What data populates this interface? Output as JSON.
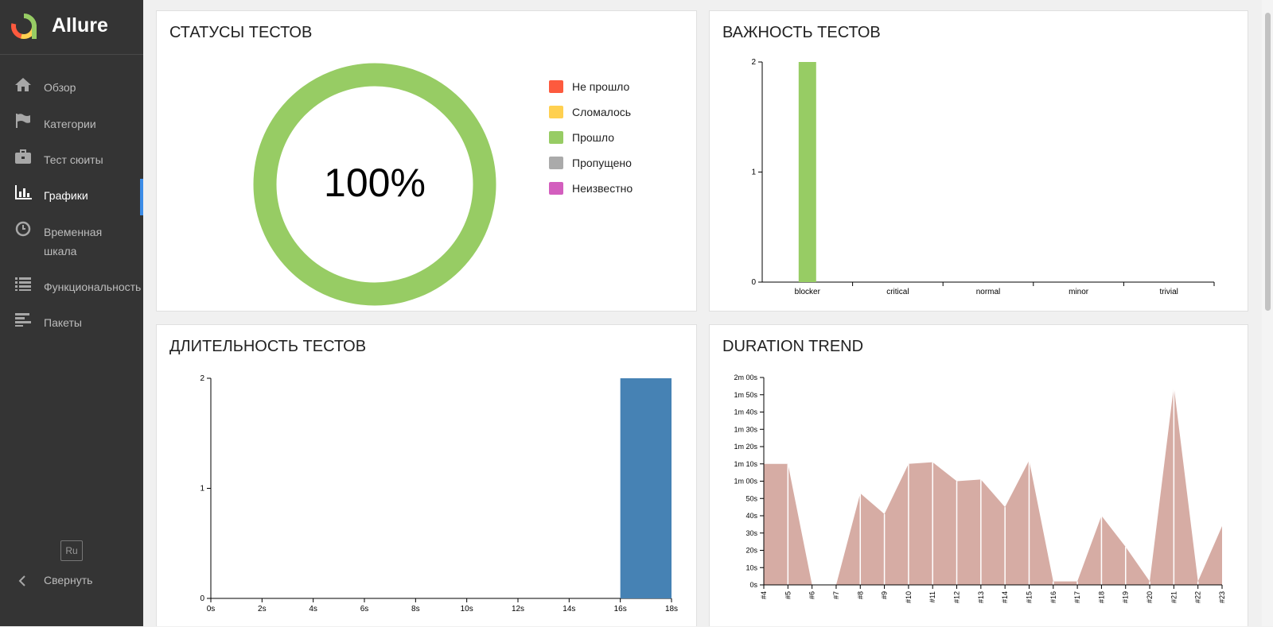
{
  "app": {
    "name": "Allure"
  },
  "sidebar": {
    "items": [
      {
        "label": "Обзор",
        "icon": "home-icon"
      },
      {
        "label": "Категории",
        "icon": "flag-icon"
      },
      {
        "label": "Тест сюиты",
        "icon": "briefcase-icon"
      },
      {
        "label": "Графики",
        "icon": "bar-chart-icon",
        "active": true
      },
      {
        "label": "Временная шкала",
        "icon": "clock-icon"
      },
      {
        "label": "Функциональность",
        "icon": "list-icon"
      },
      {
        "label": "Пакеты",
        "icon": "align-left-icon"
      }
    ],
    "language": "Ru",
    "collapse_label": "Свернуть"
  },
  "widgets": {
    "statuses": {
      "title": "СТАТУСЫ ТЕСТОВ",
      "center_text": "100%",
      "legend": [
        {
          "label": "Не прошло",
          "color": "#fd5a3e"
        },
        {
          "label": "Сломалось",
          "color": "#ffd050"
        },
        {
          "label": "Прошло",
          "color": "#97cc64"
        },
        {
          "label": "Пропущено",
          "color": "#aaaaaa"
        },
        {
          "label": "Неизвестно",
          "color": "#d35ebe"
        }
      ]
    },
    "severity": {
      "title": "ВАЖНОСТЬ ТЕСТОВ"
    },
    "duration": {
      "title": "ДЛИТЕЛЬНОСТЬ ТЕСТОВ"
    },
    "trend": {
      "title": "DURATION TREND"
    }
  },
  "chart_data": [
    {
      "type": "pie",
      "title": "СТАТУСЫ ТЕСТОВ",
      "categories": [
        "Не прошло",
        "Сломалось",
        "Прошло",
        "Пропущено",
        "Неизвестно"
      ],
      "values": [
        0,
        0,
        100,
        0,
        0
      ],
      "colors": [
        "#fd5a3e",
        "#ffd050",
        "#97cc64",
        "#aaaaaa",
        "#d35ebe"
      ],
      "center_label": "100%",
      "legend": "right"
    },
    {
      "type": "bar",
      "title": "ВАЖНОСТЬ ТЕСТОВ",
      "categories": [
        "blocker",
        "critical",
        "normal",
        "minor",
        "trivial"
      ],
      "values": [
        2,
        0,
        0,
        0,
        0
      ],
      "ylim": [
        0,
        2
      ],
      "yticks": [
        "0",
        "1",
        "2"
      ],
      "color": "#97cc64"
    },
    {
      "type": "bar",
      "title": "ДЛИТЕЛЬНОСТЬ ТЕСТОВ",
      "x_ticks": [
        "0s",
        "2s",
        "4s",
        "6s",
        "8s",
        "10s",
        "12s",
        "14s",
        "16s",
        "18s"
      ],
      "bins": [
        {
          "from": 16,
          "to": 18,
          "value": 2
        }
      ],
      "xlim": [
        0,
        18
      ],
      "ylim": [
        0,
        2
      ],
      "yticks": [
        "0",
        "1",
        "2"
      ],
      "color": "#4682b4"
    },
    {
      "type": "area",
      "title": "DURATION TREND",
      "categories": [
        "#4",
        "#5",
        "#6",
        "#7",
        "#8",
        "#9",
        "#10",
        "#11",
        "#12",
        "#13",
        "#14",
        "#15",
        "#16",
        "#17",
        "#18",
        "#19",
        "#20",
        "#21",
        "#22",
        "#23"
      ],
      "values": [
        70,
        70,
        0,
        0,
        53,
        41,
        70,
        71,
        60,
        61,
        45,
        72,
        2,
        2,
        40,
        22,
        2,
        115,
        2,
        34
      ],
      "ylim": [
        0,
        120
      ],
      "ytick_labels": [
        "0s",
        "10s",
        "20s",
        "30s",
        "40s",
        "50s",
        "1m 00s",
        "1m 10s",
        "1m 20s",
        "1m 30s",
        "1m 40s",
        "1m 50s",
        "2m 00s"
      ],
      "yunit": "seconds",
      "color": "#d6aca4"
    }
  ]
}
